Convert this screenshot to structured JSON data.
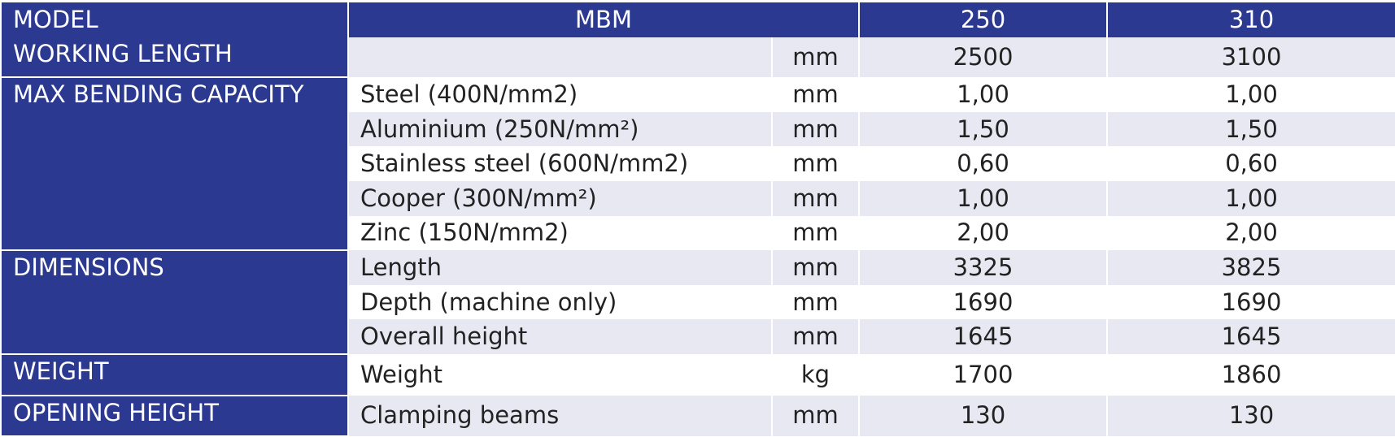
{
  "header": {
    "label": "MODEL",
    "model": "MBM",
    "col1": "250",
    "col2": "310"
  },
  "colors": {
    "header_bg": "#2b3990",
    "shade_bg": "#e8e8f3"
  },
  "groups": [
    {
      "label": "WORKING LENGTH",
      "rows": [
        {
          "name": "",
          "unit": "mm",
          "v1": "2500",
          "v2": "3100"
        }
      ]
    },
    {
      "label": "MAX BENDING CAPACITY",
      "rows": [
        {
          "name": "Steel (400N/mm2)",
          "unit": "mm",
          "v1": "1,00",
          "v2": "1,00"
        },
        {
          "name": "Aluminium (250N/mm²)",
          "unit": "mm",
          "v1": "1,50",
          "v2": "1,50"
        },
        {
          "name": "Stainless steel (600N/mm2)",
          "unit": "mm",
          "v1": "0,60",
          "v2": "0,60"
        },
        {
          "name": "Cooper (300N/mm²)",
          "unit": "mm",
          "v1": "1,00",
          "v2": "1,00"
        },
        {
          "name": "Zinc (150N/mm2)",
          "unit": "mm",
          "v1": "2,00",
          "v2": "2,00"
        }
      ]
    },
    {
      "label": "DIMENSIONS",
      "rows": [
        {
          "name": "Length",
          "unit": "mm",
          "v1": "3325",
          "v2": "3825"
        },
        {
          "name": "Depth (machine only)",
          "unit": "mm",
          "v1": "1690",
          "v2": "1690"
        },
        {
          "name": "Overall height",
          "unit": "mm",
          "v1": "1645",
          "v2": "1645"
        }
      ]
    },
    {
      "label": "WEIGHT",
      "rows": [
        {
          "name": "Weight",
          "unit": "kg",
          "v1": "1700",
          "v2": "1860"
        }
      ]
    },
    {
      "label": "OPENING HEIGHT",
      "rows": [
        {
          "name": "Clamping beams",
          "unit": "mm",
          "v1": "130",
          "v2": "130"
        }
      ]
    }
  ]
}
